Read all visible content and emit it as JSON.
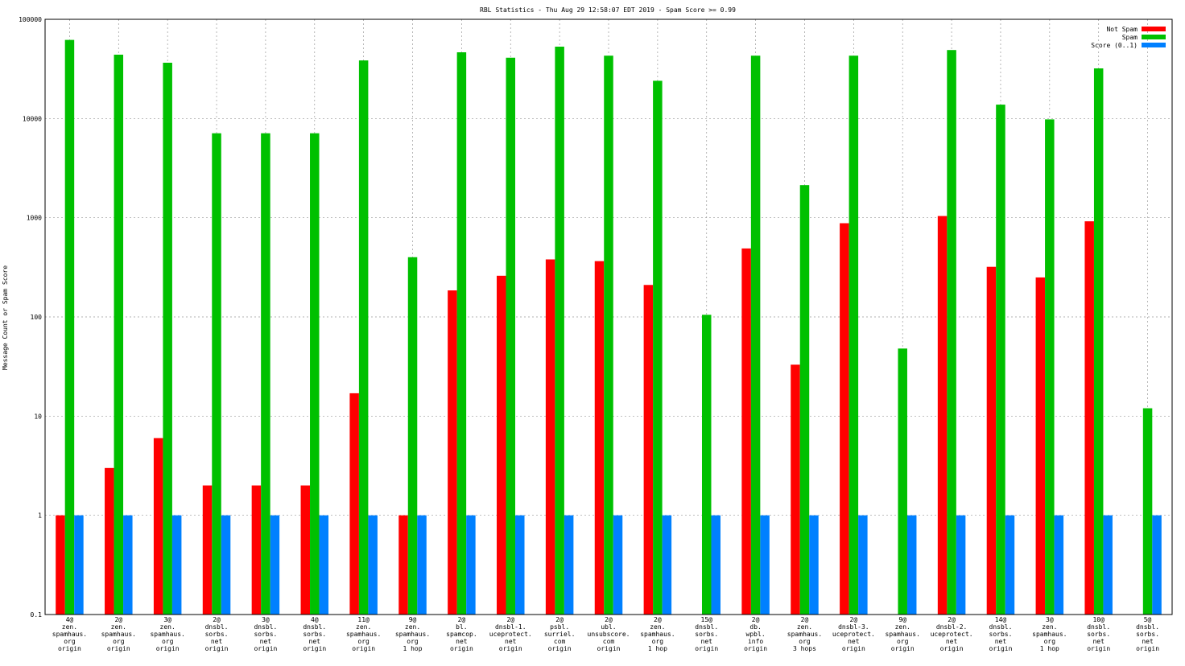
{
  "chart_data": {
    "type": "bar",
    "title": "RBL Statistics - Thu Aug 29 12:58:07 EDT 2019 - Spam Score >= 0.99",
    "ylabel": "Message Count or Spam Score",
    "xlabel": "",
    "yscale": "log",
    "ylim": [
      0.1,
      100000
    ],
    "yticks": [
      {
        "value": 0.1,
        "label": "0.1"
      },
      {
        "value": 1,
        "label": "1"
      },
      {
        "value": 10,
        "label": "10"
      },
      {
        "value": 100,
        "label": "100"
      },
      {
        "value": 1000,
        "label": "1000"
      },
      {
        "value": 10000,
        "label": "10000"
      },
      {
        "value": 100000,
        "label": "100000"
      }
    ],
    "grid": true,
    "legend_position": "top-right",
    "categories": [
      [
        "4@",
        "zen.",
        "spamhaus.",
        "org",
        "origin"
      ],
      [
        "2@",
        "zen.",
        "spamhaus.",
        "org",
        "origin"
      ],
      [
        "3@",
        "zen.",
        "spamhaus.",
        "org",
        "origin"
      ],
      [
        "2@",
        "dnsbl.",
        "sorbs.",
        "net",
        "origin"
      ],
      [
        "3@",
        "dnsbl.",
        "sorbs.",
        "net",
        "origin"
      ],
      [
        "4@",
        "dnsbl.",
        "sorbs.",
        "net",
        "origin"
      ],
      [
        "11@",
        "zen.",
        "spamhaus.",
        "org",
        "origin"
      ],
      [
        "9@",
        "zen.",
        "spamhaus.",
        "org",
        "1 hop"
      ],
      [
        "2@",
        "bl.",
        "spamcop.",
        "net",
        "origin"
      ],
      [
        "2@",
        "dnsbl-1.",
        "uceprotect.",
        "net",
        "origin"
      ],
      [
        "2@",
        "psbl.",
        "surriel.",
        "com",
        "origin"
      ],
      [
        "2@",
        "ubl.",
        "unsubscore.",
        "com",
        "origin"
      ],
      [
        "2@",
        "zen.",
        "spamhaus.",
        "org",
        "1 hop"
      ],
      [
        "15@",
        "dnsbl.",
        "sorbs.",
        "net",
        "origin"
      ],
      [
        "2@",
        "db.",
        "wpbl.",
        "info",
        "origin"
      ],
      [
        "2@",
        "zen.",
        "spamhaus.",
        "org",
        "3 hops"
      ],
      [
        "2@",
        "dnsbl-3.",
        "uceprotect.",
        "net",
        "origin"
      ],
      [
        "9@",
        "zen.",
        "spamhaus.",
        "org",
        "origin"
      ],
      [
        "2@",
        "dnsbl-2.",
        "uceprotect.",
        "net",
        "origin"
      ],
      [
        "14@",
        "dnsbl.",
        "sorbs.",
        "net",
        "origin"
      ],
      [
        "3@",
        "zen.",
        "spamhaus.",
        "org",
        "1 hop"
      ],
      [
        "10@",
        "dnsbl.",
        "sorbs.",
        "net",
        "origin"
      ],
      [
        "5@",
        "dnsbl.",
        "sorbs.",
        "net",
        "origin"
      ]
    ],
    "series": [
      {
        "name": "Not Spam",
        "color": "#ff0000",
        "values": [
          1,
          3,
          6,
          2,
          2,
          2,
          17,
          1,
          185,
          260,
          380,
          365,
          210,
          null,
          490,
          33,
          880,
          null,
          1040,
          320,
          250,
          920,
          null
        ]
      },
      {
        "name": "Spam",
        "color": "#00c000",
        "values": [
          62000,
          44000,
          36500,
          7100,
          7100,
          7100,
          38500,
          400,
          46500,
          41000,
          53000,
          43000,
          24000,
          105,
          43000,
          2130,
          43000,
          48,
          49000,
          13800,
          9800,
          32000,
          12
        ]
      },
      {
        "name": "Score (0..1)",
        "color": "#0080ff",
        "values": [
          1,
          1,
          1,
          1,
          1,
          1,
          1,
          1,
          1,
          1,
          1,
          1,
          1,
          1,
          1,
          1,
          1,
          1,
          1,
          1,
          1,
          1,
          1
        ]
      }
    ]
  }
}
